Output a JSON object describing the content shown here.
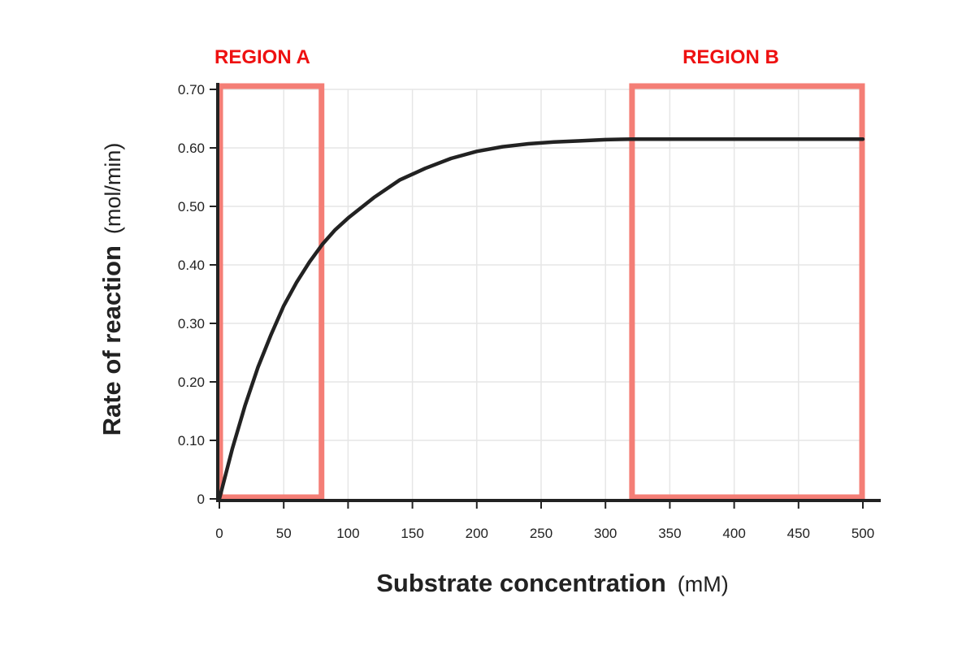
{
  "chart_data": {
    "type": "line",
    "title": "",
    "xlabel": "Substrate concentration",
    "xlabel_unit": "(mM)",
    "ylabel": "Rate of reaction",
    "ylabel_unit": "(mol/min)",
    "xlim": [
      0,
      500
    ],
    "ylim": [
      0,
      0.7
    ],
    "grid": true,
    "x_ticks": [
      0,
      50,
      100,
      150,
      200,
      250,
      300,
      350,
      400,
      450,
      500
    ],
    "x_tick_labels": [
      "0",
      "50",
      "100",
      "150",
      "200",
      "250",
      "300",
      "350",
      "400",
      "450",
      "500"
    ],
    "y_ticks": [
      0,
      0.1,
      0.2,
      0.3,
      0.4,
      0.5,
      0.6,
      0.7
    ],
    "y_tick_labels": [
      "0",
      "0.10",
      "0.20",
      "0.30",
      "0.40",
      "0.50",
      "0.60",
      "0.70"
    ],
    "series": [
      {
        "name": "Reaction rate",
        "x": [
          0,
          10,
          20,
          30,
          40,
          50,
          60,
          70,
          80,
          90,
          100,
          120,
          140,
          160,
          180,
          200,
          220,
          240,
          260,
          280,
          300,
          320,
          340,
          360,
          380,
          400,
          420,
          440,
          460,
          480,
          500
        ],
        "y": [
          0,
          0.085,
          0.16,
          0.225,
          0.28,
          0.33,
          0.37,
          0.405,
          0.435,
          0.46,
          0.48,
          0.515,
          0.545,
          0.565,
          0.582,
          0.594,
          0.602,
          0.607,
          0.61,
          0.612,
          0.614,
          0.615,
          0.615,
          0.615,
          0.615,
          0.615,
          0.615,
          0.615,
          0.615,
          0.615,
          0.615
        ],
        "color": "#222222"
      }
    ],
    "regions": [
      {
        "label": "REGION A",
        "x_range": [
          0,
          80
        ],
        "y_range": [
          0,
          0.7
        ]
      },
      {
        "label": "REGION B",
        "x_range": [
          320,
          500
        ],
        "y_range": [
          0,
          0.7
        ]
      }
    ],
    "region_color": "#f47e76",
    "region_label_color": "#ee1111",
    "grid_color": "#e6e6e6",
    "axis_color": "#222222"
  }
}
